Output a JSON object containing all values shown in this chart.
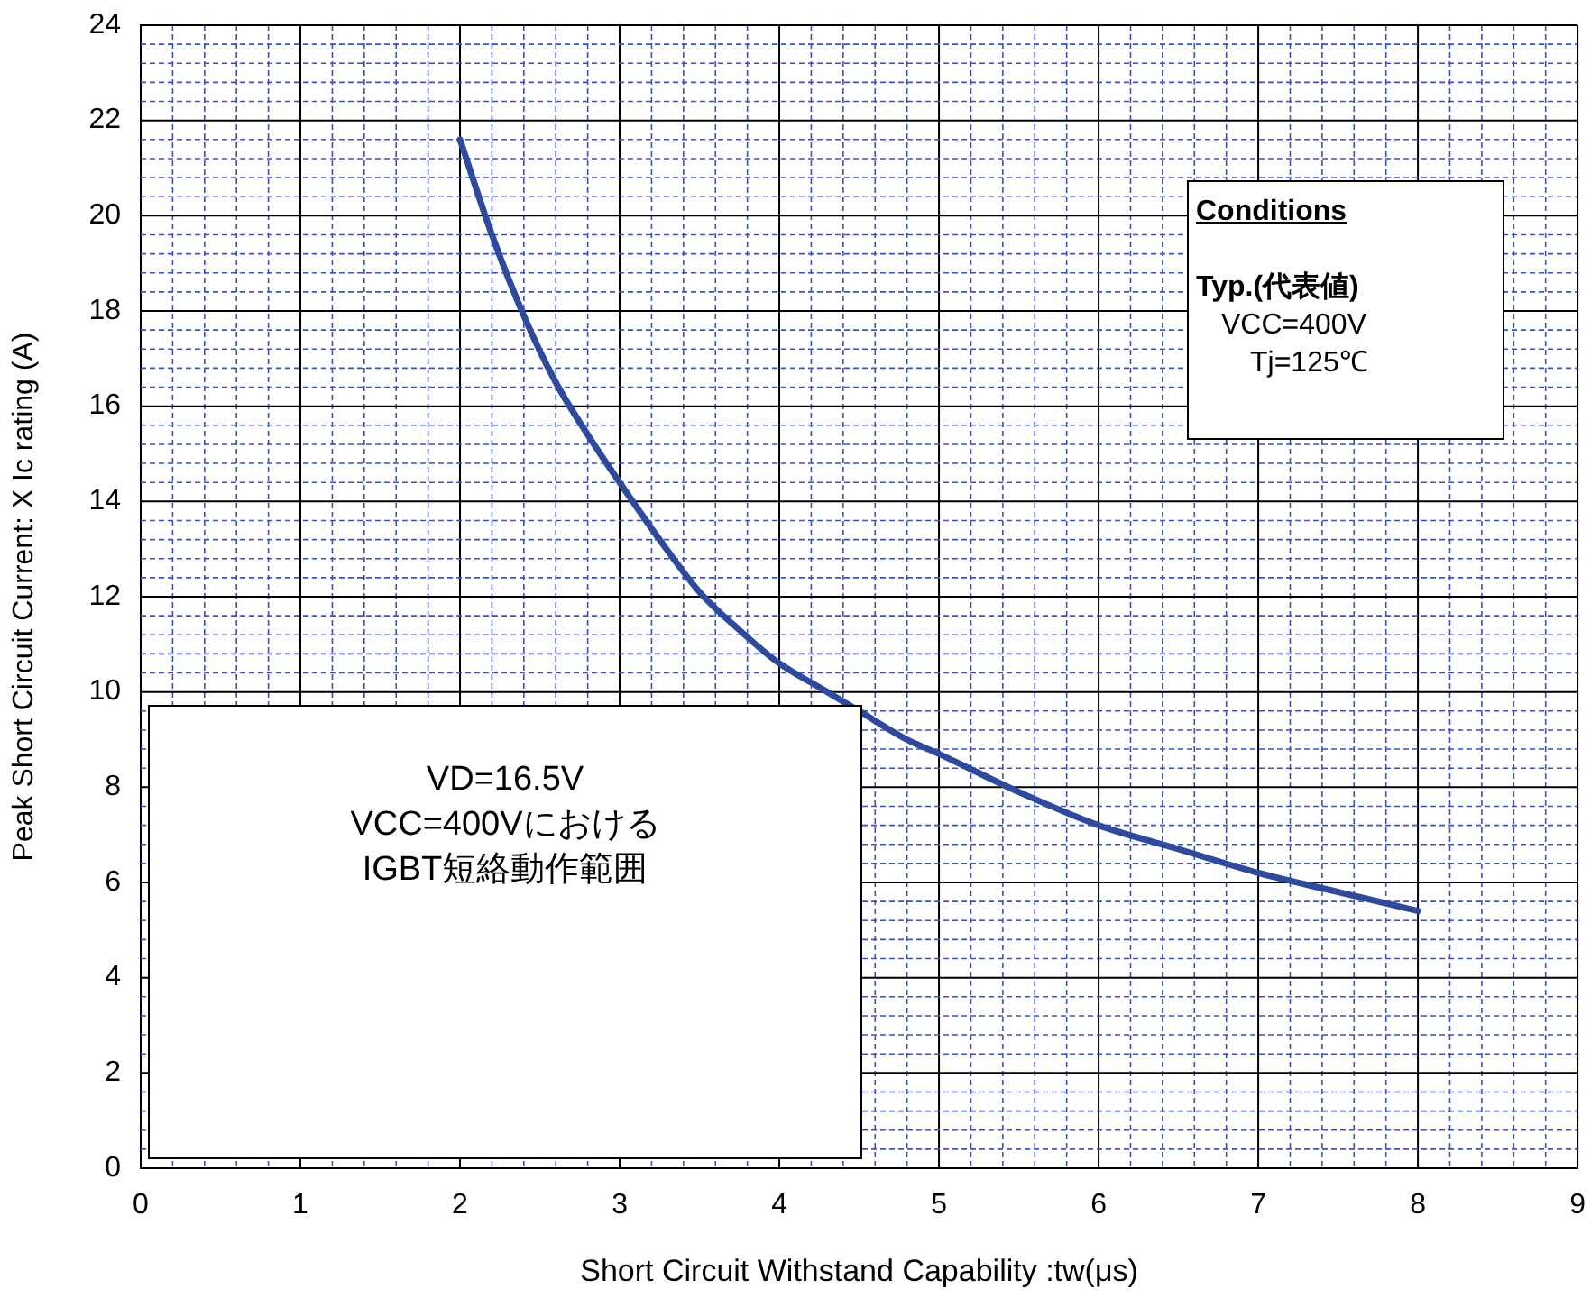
{
  "chart_data": {
    "type": "line",
    "xlabel": "Short Circuit Withstand Capability :tw(μs)",
    "ylabel": "Peak Short Circuit Current: X Ic rating (A)",
    "x": [
      2,
      2.2,
      2.4,
      2.6,
      2.8,
      3,
      3.25,
      3.5,
      3.75,
      4,
      4.25,
      4.5,
      4.8,
      5,
      5.5,
      6,
      6.5,
      7,
      7.5,
      8
    ],
    "series": [
      {
        "color": "#2e4a9e",
        "values": [
          21.6,
          19.6,
          17.9,
          16.5,
          15.4,
          14.4,
          13.2,
          12.1,
          11.3,
          10.6,
          10.1,
          9.6,
          9.0,
          8.7,
          7.9,
          7.2,
          6.7,
          6.2,
          5.8,
          5.4
        ]
      }
    ],
    "xlim": [
      0,
      9
    ],
    "ylim": [
      0,
      24
    ],
    "xticks": [
      0,
      {
        "value": 0.2,
        "label": null
      },
      {
        "value": 0.4,
        "label": null
      },
      {
        "value": 0.6,
        "label": null
      },
      {
        "value": 0.8,
        "label": null
      },
      1,
      {
        "value": 1.2,
        "label": null
      },
      {
        "value": 1.4,
        "label": null
      },
      {
        "value": 1.6,
        "label": null
      },
      {
        "value": 1.8,
        "label": null
      },
      2,
      {
        "value": 2.2,
        "label": null
      },
      {
        "value": 2.4,
        "label": null
      },
      {
        "value": 2.6,
        "label": null
      },
      {
        "value": 2.8,
        "label": null
      },
      3,
      {
        "value": 3.2,
        "label": null
      },
      {
        "value": 3.4,
        "label": null
      },
      {
        "value": 3.6,
        "label": null
      },
      {
        "value": 3.8,
        "label": null
      },
      4,
      {
        "value": 4.2,
        "label": null
      },
      {
        "value": 4.4,
        "label": null
      },
      {
        "value": 4.6,
        "label": null
      },
      {
        "value": 4.8,
        "label": null
      },
      5,
      {
        "value": 5.2,
        "label": null
      },
      {
        "value": 5.4,
        "label": null
      },
      {
        "value": 5.6,
        "label": null
      },
      {
        "value": 5.8,
        "label": null
      },
      6,
      {
        "value": 6.2,
        "label": null
      },
      {
        "value": 6.4,
        "label": null
      },
      {
        "value": 6.6,
        "label": null
      },
      {
        "value": 6.8,
        "label": null
      },
      7,
      {
        "value": 7.2,
        "label": null
      },
      {
        "value": 7.4,
        "label": null
      },
      {
        "value": 7.6,
        "label": null
      },
      {
        "value": 7.8,
        "label": null
      },
      8,
      {
        "value": 8.2,
        "label": null
      },
      {
        "value": 8.4,
        "label": null
      },
      {
        "value": 8.6,
        "label": null
      },
      {
        "value": 8.8,
        "label": null
      },
      9
    ],
    "yticks": [
      0,
      {
        "value": 0.4,
        "label": null
      },
      {
        "value": 0.8,
        "label": null
      },
      {
        "value": 1.2,
        "label": null
      },
      {
        "value": 1.6,
        "label": null
      },
      2,
      {
        "value": 2.4,
        "label": null
      },
      {
        "value": 2.8,
        "label": null
      },
      {
        "value": 3.2,
        "label": null
      },
      {
        "value": 3.6,
        "label": null
      },
      4,
      {
        "value": 4.4,
        "label": null
      },
      {
        "value": 4.8,
        "label": null
      },
      {
        "value": 5.2,
        "label": null
      },
      {
        "value": 5.6,
        "label": null
      },
      6,
      {
        "value": 6.4,
        "label": null
      },
      {
        "value": 6.8,
        "label": null
      },
      {
        "value": 7.2,
        "label": null
      },
      {
        "value": 7.6,
        "label": null
      },
      8,
      {
        "value": 8.4,
        "label": null
      },
      {
        "value": 8.8,
        "label": null
      },
      {
        "value": 9.2,
        "label": null
      },
      {
        "value": 9.6,
        "label": null
      },
      10,
      {
        "value": 10.4,
        "label": null
      },
      {
        "value": 10.8,
        "label": null
      },
      {
        "value": 11.2,
        "label": null
      },
      {
        "value": 11.6,
        "label": null
      },
      12,
      {
        "value": 12.4,
        "label": null
      },
      {
        "value": 12.8,
        "label": null
      },
      {
        "value": 13.2,
        "label": null
      },
      {
        "value": 13.6,
        "label": null
      },
      14,
      {
        "value": 14.4,
        "label": null
      },
      {
        "value": 14.8,
        "label": null
      },
      {
        "value": 15.2,
        "label": null
      },
      {
        "value": 15.6,
        "label": null
      },
      16,
      {
        "value": 16.4,
        "label": null
      },
      {
        "value": 16.8,
        "label": null
      },
      {
        "value": 17.2,
        "label": null
      },
      {
        "value": 17.6,
        "label": null
      },
      18,
      {
        "value": 18.4,
        "label": null
      },
      {
        "value": 18.8,
        "label": null
      },
      {
        "value": 19.2,
        "label": null
      },
      {
        "value": 19.6,
        "label": null
      },
      20,
      {
        "value": 20.4,
        "label": null
      },
      {
        "value": 20.8,
        "label": null
      },
      {
        "value": 21.2,
        "label": null
      },
      {
        "value": 21.6,
        "label": null
      },
      22,
      {
        "value": 22.4,
        "label": null
      },
      {
        "value": 22.8,
        "label": null
      },
      {
        "value": 23.2,
        "label": null
      },
      {
        "value": 23.6,
        "label": null
      },
      24
    ],
    "grid": true,
    "legend": false,
    "marker": "none",
    "line_style": "solid",
    "annotations": [
      "VD=16.5V",
      "VCC=400Vにおける",
      "IGBT短絡動作範囲",
      "Conditions",
      "Typ.(代表値)",
      "VCC=400V",
      "Tj=125℃"
    ]
  }
}
